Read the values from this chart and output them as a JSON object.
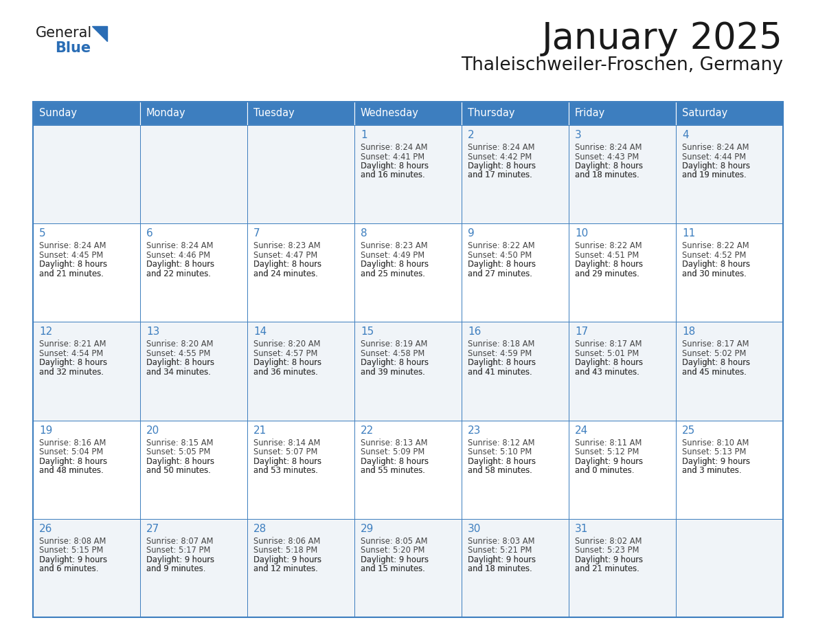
{
  "title": "January 2025",
  "subtitle": "Thaleischweiler-Froschen, Germany",
  "days_of_week": [
    "Sunday",
    "Monday",
    "Tuesday",
    "Wednesday",
    "Thursday",
    "Friday",
    "Saturday"
  ],
  "header_bg": "#3d7ebf",
  "header_text_color": "#ffffff",
  "cell_bg_light": "#f0f4f8",
  "cell_bg_white": "#ffffff",
  "cell_border_color": "#3d7ebf",
  "day_number_color": "#3d7ebf",
  "text_color": "#444444",
  "title_color": "#1a1a1a",
  "logo_general_color": "#1a1a1a",
  "logo_blue_color": "#2a6db5",
  "weeks": [
    [
      {
        "date": "",
        "sunrise": "",
        "sunset": "",
        "daylight": ""
      },
      {
        "date": "",
        "sunrise": "",
        "sunset": "",
        "daylight": ""
      },
      {
        "date": "",
        "sunrise": "",
        "sunset": "",
        "daylight": ""
      },
      {
        "date": "1",
        "sunrise": "8:24 AM",
        "sunset": "4:41 PM",
        "daylight": "8 hours\nand 16 minutes."
      },
      {
        "date": "2",
        "sunrise": "8:24 AM",
        "sunset": "4:42 PM",
        "daylight": "8 hours\nand 17 minutes."
      },
      {
        "date": "3",
        "sunrise": "8:24 AM",
        "sunset": "4:43 PM",
        "daylight": "8 hours\nand 18 minutes."
      },
      {
        "date": "4",
        "sunrise": "8:24 AM",
        "sunset": "4:44 PM",
        "daylight": "8 hours\nand 19 minutes."
      }
    ],
    [
      {
        "date": "5",
        "sunrise": "8:24 AM",
        "sunset": "4:45 PM",
        "daylight": "8 hours\nand 21 minutes."
      },
      {
        "date": "6",
        "sunrise": "8:24 AM",
        "sunset": "4:46 PM",
        "daylight": "8 hours\nand 22 minutes."
      },
      {
        "date": "7",
        "sunrise": "8:23 AM",
        "sunset": "4:47 PM",
        "daylight": "8 hours\nand 24 minutes."
      },
      {
        "date": "8",
        "sunrise": "8:23 AM",
        "sunset": "4:49 PM",
        "daylight": "8 hours\nand 25 minutes."
      },
      {
        "date": "9",
        "sunrise": "8:22 AM",
        "sunset": "4:50 PM",
        "daylight": "8 hours\nand 27 minutes."
      },
      {
        "date": "10",
        "sunrise": "8:22 AM",
        "sunset": "4:51 PM",
        "daylight": "8 hours\nand 29 minutes."
      },
      {
        "date": "11",
        "sunrise": "8:22 AM",
        "sunset": "4:52 PM",
        "daylight": "8 hours\nand 30 minutes."
      }
    ],
    [
      {
        "date": "12",
        "sunrise": "8:21 AM",
        "sunset": "4:54 PM",
        "daylight": "8 hours\nand 32 minutes."
      },
      {
        "date": "13",
        "sunrise": "8:20 AM",
        "sunset": "4:55 PM",
        "daylight": "8 hours\nand 34 minutes."
      },
      {
        "date": "14",
        "sunrise": "8:20 AM",
        "sunset": "4:57 PM",
        "daylight": "8 hours\nand 36 minutes."
      },
      {
        "date": "15",
        "sunrise": "8:19 AM",
        "sunset": "4:58 PM",
        "daylight": "8 hours\nand 39 minutes."
      },
      {
        "date": "16",
        "sunrise": "8:18 AM",
        "sunset": "4:59 PM",
        "daylight": "8 hours\nand 41 minutes."
      },
      {
        "date": "17",
        "sunrise": "8:17 AM",
        "sunset": "5:01 PM",
        "daylight": "8 hours\nand 43 minutes."
      },
      {
        "date": "18",
        "sunrise": "8:17 AM",
        "sunset": "5:02 PM",
        "daylight": "8 hours\nand 45 minutes."
      }
    ],
    [
      {
        "date": "19",
        "sunrise": "8:16 AM",
        "sunset": "5:04 PM",
        "daylight": "8 hours\nand 48 minutes."
      },
      {
        "date": "20",
        "sunrise": "8:15 AM",
        "sunset": "5:05 PM",
        "daylight": "8 hours\nand 50 minutes."
      },
      {
        "date": "21",
        "sunrise": "8:14 AM",
        "sunset": "5:07 PM",
        "daylight": "8 hours\nand 53 minutes."
      },
      {
        "date": "22",
        "sunrise": "8:13 AM",
        "sunset": "5:09 PM",
        "daylight": "8 hours\nand 55 minutes."
      },
      {
        "date": "23",
        "sunrise": "8:12 AM",
        "sunset": "5:10 PM",
        "daylight": "8 hours\nand 58 minutes."
      },
      {
        "date": "24",
        "sunrise": "8:11 AM",
        "sunset": "5:12 PM",
        "daylight": "9 hours\nand 0 minutes."
      },
      {
        "date": "25",
        "sunrise": "8:10 AM",
        "sunset": "5:13 PM",
        "daylight": "9 hours\nand 3 minutes."
      }
    ],
    [
      {
        "date": "26",
        "sunrise": "8:08 AM",
        "sunset": "5:15 PM",
        "daylight": "9 hours\nand 6 minutes."
      },
      {
        "date": "27",
        "sunrise": "8:07 AM",
        "sunset": "5:17 PM",
        "daylight": "9 hours\nand 9 minutes."
      },
      {
        "date": "28",
        "sunrise": "8:06 AM",
        "sunset": "5:18 PM",
        "daylight": "9 hours\nand 12 minutes."
      },
      {
        "date": "29",
        "sunrise": "8:05 AM",
        "sunset": "5:20 PM",
        "daylight": "9 hours\nand 15 minutes."
      },
      {
        "date": "30",
        "sunrise": "8:03 AM",
        "sunset": "5:21 PM",
        "daylight": "9 hours\nand 18 minutes."
      },
      {
        "date": "31",
        "sunrise": "8:02 AM",
        "sunset": "5:23 PM",
        "daylight": "9 hours\nand 21 minutes."
      },
      {
        "date": "",
        "sunrise": "",
        "sunset": "",
        "daylight": ""
      }
    ]
  ]
}
